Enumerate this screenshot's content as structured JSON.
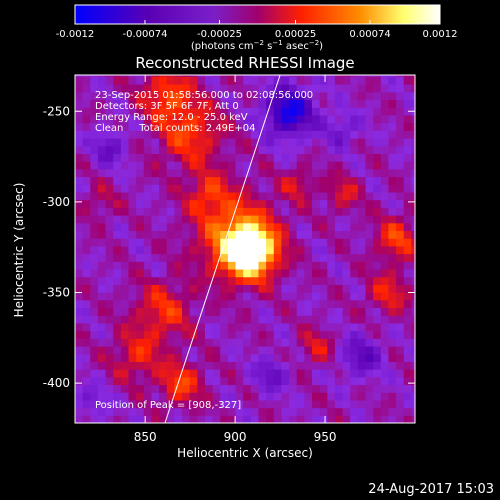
{
  "chart_data": {
    "type": "heatmap",
    "title": "Reconstructed RHESSI Image",
    "xlabel": "Heliocentric X (arcsec)",
    "ylabel": "Heliocentric Y (arcsec)",
    "xlim": [
      811,
      1000
    ],
    "ylim": [
      -422,
      -230
    ],
    "xticks": [
      850,
      900,
      950
    ],
    "yticks": [
      -250,
      -300,
      -350,
      -400
    ],
    "colorbar": {
      "label_html": "(photons cm⁻² s⁻¹ asec⁻²)",
      "range": [
        -0.0012,
        0.0012
      ],
      "ticks": [
        "-0.0012",
        "-0.00074",
        "-0.00025",
        "0.00025",
        "0.00074",
        "0.0012"
      ],
      "colors": [
        "#0000ff",
        "#5a00b4",
        "#8a2be2",
        "#a0006e",
        "#ff2000",
        "#ff8c00",
        "#ffff70",
        "#ffffff"
      ]
    },
    "annotations": [
      "23-Sep-2015 01:58:56.000 to 02:08:56.000",
      "Detectors: 3F 5F 6F 7F, Att 0",
      "Energy Range: 12.0 - 25.0 keV",
      "Clean     Total counts: 2.49E+04"
    ],
    "peak_label": "Position of Peak = [908,-327]",
    "peak": [
      908,
      -327
    ],
    "limb_line": [
      [
        861,
        -422
      ],
      [
        925,
        -230
      ]
    ]
  },
  "footer": {
    "date": "24-Aug-2017 15:03"
  }
}
